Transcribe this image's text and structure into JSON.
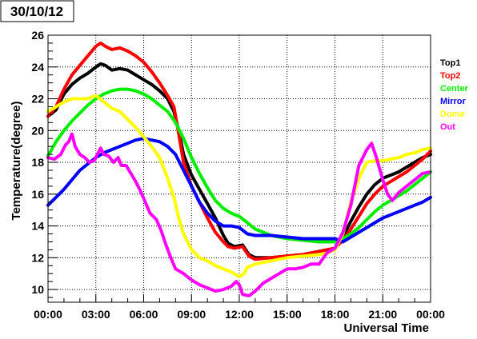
{
  "window": {
    "date_label": "30/10/12"
  },
  "chart_data": {
    "type": "line",
    "title": "",
    "xlabel": "Universal Time",
    "ylabel": "Temperature(degree)",
    "xlim": [
      0,
      24
    ],
    "ylim": [
      9.2,
      26
    ],
    "grid": true,
    "legend_placement": "right",
    "x_ticks": [
      "00:00",
      "03:00",
      "06:00",
      "09:00",
      "12:00",
      "15:00",
      "18:00",
      "21:00",
      "00:00"
    ],
    "y_ticks": [
      "10",
      "12",
      "14",
      "16",
      "18",
      "20",
      "22",
      "24",
      "26"
    ],
    "series": [
      {
        "name": "Top1",
        "color": "#000000",
        "points": [
          [
            0,
            20.9
          ],
          [
            0.5,
            21.3
          ],
          [
            1,
            22.3
          ],
          [
            1.5,
            22.9
          ],
          [
            2,
            23.3
          ],
          [
            2.5,
            23.6
          ],
          [
            3,
            24.0
          ],
          [
            3.3,
            24.2
          ],
          [
            3.6,
            24.1
          ],
          [
            4,
            23.8
          ],
          [
            4.5,
            23.9
          ],
          [
            5,
            23.8
          ],
          [
            5.5,
            23.5
          ],
          [
            6,
            23.2
          ],
          [
            6.5,
            22.9
          ],
          [
            7,
            22.5
          ],
          [
            7.5,
            22.0
          ],
          [
            7.9,
            21.2
          ],
          [
            8.2,
            20.0
          ],
          [
            8.5,
            18.5
          ],
          [
            9,
            17.2
          ],
          [
            9.5,
            16.3
          ],
          [
            10,
            15.4
          ],
          [
            10.5,
            14.5
          ],
          [
            11,
            13.4
          ],
          [
            11.3,
            12.9
          ],
          [
            11.7,
            12.7
          ],
          [
            12.2,
            12.8
          ],
          [
            12.6,
            12.2
          ],
          [
            13,
            12.0
          ],
          [
            14,
            12.0
          ],
          [
            15,
            12.1
          ],
          [
            16,
            12.2
          ],
          [
            17,
            12.4
          ],
          [
            17.5,
            12.5
          ],
          [
            18,
            12.6
          ],
          [
            18.5,
            13.3
          ],
          [
            19,
            14.3
          ],
          [
            19.5,
            15.2
          ],
          [
            20,
            16.0
          ],
          [
            20.5,
            16.6
          ],
          [
            21,
            17.0
          ],
          [
            21.5,
            17.2
          ],
          [
            22,
            17.4
          ],
          [
            22.5,
            17.7
          ],
          [
            23,
            18.0
          ],
          [
            23.5,
            18.3
          ],
          [
            24,
            18.5
          ]
        ]
      },
      {
        "name": "Top2",
        "color": "#ff0000",
        "points": [
          [
            0,
            20.9
          ],
          [
            0.5,
            21.5
          ],
          [
            1,
            22.6
          ],
          [
            1.5,
            23.5
          ],
          [
            2,
            24.1
          ],
          [
            2.5,
            24.7
          ],
          [
            3,
            25.3
          ],
          [
            3.3,
            25.5
          ],
          [
            3.6,
            25.3
          ],
          [
            4,
            25.1
          ],
          [
            4.5,
            25.2
          ],
          [
            5,
            25.0
          ],
          [
            5.5,
            24.7
          ],
          [
            6,
            24.3
          ],
          [
            6.5,
            23.7
          ],
          [
            7,
            23.0
          ],
          [
            7.5,
            22.2
          ],
          [
            7.9,
            21.5
          ],
          [
            8.2,
            19.8
          ],
          [
            8.5,
            18.0
          ],
          [
            9,
            16.5
          ],
          [
            9.5,
            15.5
          ],
          [
            10,
            14.5
          ],
          [
            10.5,
            13.6
          ],
          [
            11,
            13.0
          ],
          [
            11.3,
            12.7
          ],
          [
            11.7,
            12.6
          ],
          [
            12.2,
            12.7
          ],
          [
            12.6,
            12.1
          ],
          [
            13,
            11.9
          ],
          [
            14,
            12.0
          ],
          [
            15,
            12.1
          ],
          [
            16,
            12.2
          ],
          [
            17,
            12.4
          ],
          [
            17.5,
            12.5
          ],
          [
            18,
            12.6
          ],
          [
            18.5,
            13.1
          ],
          [
            19,
            13.8
          ],
          [
            19.5,
            14.6
          ],
          [
            20,
            15.4
          ],
          [
            20.5,
            16.0
          ],
          [
            21,
            16.5
          ],
          [
            21.5,
            16.8
          ],
          [
            22,
            17.1
          ],
          [
            22.5,
            17.4
          ],
          [
            23,
            17.8
          ],
          [
            23.5,
            18.2
          ],
          [
            24,
            18.7
          ]
        ]
      },
      {
        "name": "Center",
        "color": "#00ee00",
        "points": [
          [
            0,
            18.4
          ],
          [
            0.5,
            19.3
          ],
          [
            1,
            20.0
          ],
          [
            1.5,
            20.6
          ],
          [
            2,
            21.1
          ],
          [
            2.5,
            21.6
          ],
          [
            3,
            22.0
          ],
          [
            3.5,
            22.3
          ],
          [
            4,
            22.5
          ],
          [
            4.5,
            22.6
          ],
          [
            5,
            22.6
          ],
          [
            5.5,
            22.5
          ],
          [
            6,
            22.3
          ],
          [
            6.5,
            22.0
          ],
          [
            7,
            21.6
          ],
          [
            7.5,
            21.2
          ],
          [
            8,
            20.5
          ],
          [
            8.5,
            19.5
          ],
          [
            9,
            18.3
          ],
          [
            9.5,
            17.3
          ],
          [
            10,
            16.4
          ],
          [
            10.5,
            15.6
          ],
          [
            11,
            15.1
          ],
          [
            11.5,
            14.8
          ],
          [
            12,
            14.6
          ],
          [
            12.5,
            14.2
          ],
          [
            13,
            13.8
          ],
          [
            14,
            13.4
          ],
          [
            15,
            13.2
          ],
          [
            16,
            13.1
          ],
          [
            17,
            13.0
          ],
          [
            17.5,
            13.0
          ],
          [
            18,
            13.0
          ],
          [
            18.5,
            13.2
          ],
          [
            19,
            13.5
          ],
          [
            19.5,
            13.9
          ],
          [
            20,
            14.4
          ],
          [
            20.5,
            14.9
          ],
          [
            21,
            15.3
          ],
          [
            21.5,
            15.6
          ],
          [
            22,
            15.9
          ],
          [
            22.5,
            16.2
          ],
          [
            23,
            16.6
          ],
          [
            23.5,
            17.0
          ],
          [
            24,
            17.4
          ]
        ]
      },
      {
        "name": "Mirror",
        "color": "#0000ff",
        "points": [
          [
            0,
            15.3
          ],
          [
            0.5,
            15.8
          ],
          [
            1,
            16.3
          ],
          [
            1.5,
            16.9
          ],
          [
            2,
            17.5
          ],
          [
            2.5,
            17.9
          ],
          [
            3,
            18.3
          ],
          [
            3.5,
            18.6
          ],
          [
            4,
            18.8
          ],
          [
            4.5,
            19.0
          ],
          [
            5,
            19.2
          ],
          [
            5.5,
            19.4
          ],
          [
            6,
            19.5
          ],
          [
            6.5,
            19.4
          ],
          [
            7,
            19.3
          ],
          [
            7.5,
            19.0
          ],
          [
            8,
            18.5
          ],
          [
            8.5,
            17.5
          ],
          [
            9,
            16.5
          ],
          [
            9.5,
            15.5
          ],
          [
            10,
            14.8
          ],
          [
            10.5,
            14.3
          ],
          [
            11,
            14.0
          ],
          [
            11.5,
            14.0
          ],
          [
            12,
            13.9
          ],
          [
            12.5,
            13.5
          ],
          [
            13,
            13.4
          ],
          [
            14,
            13.4
          ],
          [
            15,
            13.3
          ],
          [
            16,
            13.2
          ],
          [
            17,
            13.2
          ],
          [
            18,
            13.2
          ],
          [
            18.5,
            13.0
          ],
          [
            19,
            13.3
          ],
          [
            19.5,
            13.6
          ],
          [
            20,
            13.9
          ],
          [
            20.5,
            14.2
          ],
          [
            21,
            14.5
          ],
          [
            21.5,
            14.7
          ],
          [
            22,
            14.9
          ],
          [
            22.5,
            15.1
          ],
          [
            23,
            15.3
          ],
          [
            23.5,
            15.5
          ],
          [
            24,
            15.8
          ]
        ]
      },
      {
        "name": "Dome",
        "color": "#ffff00",
        "points": [
          [
            0,
            21.2
          ],
          [
            0.5,
            21.5
          ],
          [
            1,
            21.8
          ],
          [
            1.5,
            22.0
          ],
          [
            2,
            22.0
          ],
          [
            2.5,
            22.0
          ],
          [
            3,
            22.2
          ],
          [
            3.5,
            21.8
          ],
          [
            4,
            21.4
          ],
          [
            4.5,
            21.2
          ],
          [
            5,
            20.7
          ],
          [
            5.5,
            20.2
          ],
          [
            6,
            19.6
          ],
          [
            6.5,
            19.0
          ],
          [
            7,
            18.3
          ],
          [
            7.5,
            17.0
          ],
          [
            7.9,
            15.8
          ],
          [
            8.2,
            14.5
          ],
          [
            8.5,
            13.5
          ],
          [
            9,
            12.5
          ],
          [
            9.5,
            12.0
          ],
          [
            10,
            11.8
          ],
          [
            10.5,
            11.5
          ],
          [
            11,
            11.3
          ],
          [
            11.5,
            11.1
          ],
          [
            12,
            10.8
          ],
          [
            12.3,
            11.0
          ],
          [
            12.5,
            11.4
          ],
          [
            13,
            11.6
          ],
          [
            14,
            11.8
          ],
          [
            15,
            12.0
          ],
          [
            16,
            12.1
          ],
          [
            17,
            12.2
          ],
          [
            17.5,
            12.3
          ],
          [
            18,
            12.5
          ],
          [
            18.5,
            13.5
          ],
          [
            19,
            15.5
          ],
          [
            19.5,
            17.0
          ],
          [
            20,
            18.0
          ],
          [
            20.5,
            18.1
          ],
          [
            21,
            18.1
          ],
          [
            21.5,
            18.2
          ],
          [
            22,
            18.3
          ],
          [
            22.5,
            18.5
          ],
          [
            23,
            18.6
          ],
          [
            23.5,
            18.8
          ],
          [
            24,
            18.9
          ]
        ]
      },
      {
        "name": "Out",
        "color": "#ff00ff",
        "points": [
          [
            0,
            18.3
          ],
          [
            0.4,
            18.2
          ],
          [
            0.8,
            18.5
          ],
          [
            1.1,
            19.1
          ],
          [
            1.3,
            19.3
          ],
          [
            1.5,
            19.8
          ],
          [
            1.7,
            19.0
          ],
          [
            2,
            18.5
          ],
          [
            2.3,
            18.3
          ],
          [
            2.6,
            18.0
          ],
          [
            2.9,
            18.1
          ],
          [
            3.1,
            18.5
          ],
          [
            3.3,
            18.9
          ],
          [
            3.5,
            18.5
          ],
          [
            3.8,
            18.4
          ],
          [
            4.1,
            18.0
          ],
          [
            4.4,
            18.3
          ],
          [
            4.6,
            17.8
          ],
          [
            4.9,
            17.8
          ],
          [
            5.2,
            17.3
          ],
          [
            5.5,
            16.8
          ],
          [
            5.8,
            16.2
          ],
          [
            6.1,
            15.5
          ],
          [
            6.4,
            14.8
          ],
          [
            6.8,
            14.4
          ],
          [
            7.1,
            13.7
          ],
          [
            7.4,
            12.8
          ],
          [
            7.7,
            12.0
          ],
          [
            8,
            11.3
          ],
          [
            8.5,
            11.0
          ],
          [
            9,
            10.6
          ],
          [
            9.5,
            10.3
          ],
          [
            10,
            10.1
          ],
          [
            10.5,
            9.9
          ],
          [
            11,
            10.0
          ],
          [
            11.5,
            10.2
          ],
          [
            11.8,
            10.5
          ],
          [
            12,
            10.3
          ],
          [
            12.2,
            9.7
          ],
          [
            12.6,
            9.6
          ],
          [
            13,
            9.9
          ],
          [
            13.5,
            10.4
          ],
          [
            14,
            10.7
          ],
          [
            14.5,
            11.0
          ],
          [
            15,
            11.3
          ],
          [
            15.5,
            11.3
          ],
          [
            16,
            11.4
          ],
          [
            16.5,
            11.6
          ],
          [
            17,
            11.6
          ],
          [
            17.5,
            12.3
          ],
          [
            18,
            12.6
          ],
          [
            18.5,
            13.6
          ],
          [
            19,
            15.3
          ],
          [
            19.5,
            17.8
          ],
          [
            20,
            18.8
          ],
          [
            20.3,
            19.2
          ],
          [
            20.6,
            18.3
          ],
          [
            21,
            16.9
          ],
          [
            21.3,
            16.0
          ],
          [
            21.6,
            15.6
          ],
          [
            22,
            16.1
          ],
          [
            22.5,
            16.5
          ],
          [
            23,
            16.9
          ],
          [
            23.5,
            17.3
          ],
          [
            24,
            17.4
          ]
        ]
      }
    ]
  }
}
